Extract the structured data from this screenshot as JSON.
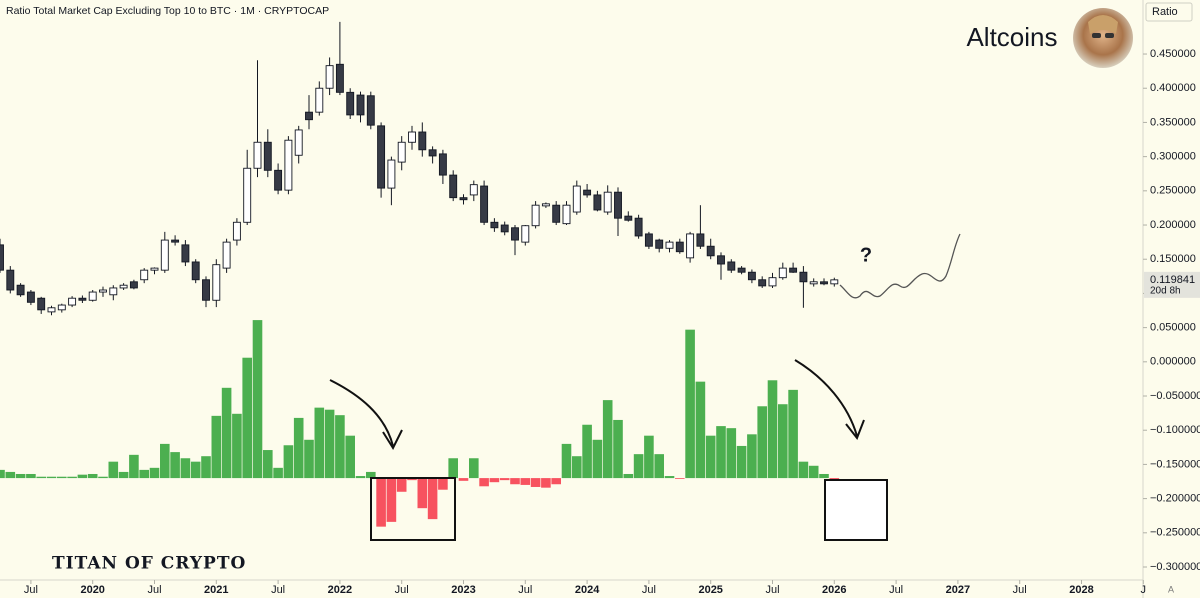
{
  "chart_data": {
    "type": "candlestick",
    "title": "Ratio Total Market Cap Excluding Top 10 to BTC · 1M · CRYPTOCAP",
    "scale_label": "Ratio",
    "annotations": {
      "main": "Altcoins",
      "question": "?",
      "watermark": "TITAN OF CRYPTO",
      "countdown": "20d 8h",
      "auto": "A"
    },
    "up_color": "#ffffff",
    "down_color": "#363a45",
    "x": [
      "2019-04",
      "2019-05",
      "2019-06",
      "2019-07",
      "2019-08",
      "2019-09",
      "2019-10",
      "2019-11",
      "2019-12",
      "2020-01",
      "2020-02",
      "2020-03",
      "2020-04",
      "2020-05",
      "2020-06",
      "2020-07",
      "2020-08",
      "2020-09",
      "2020-10",
      "2020-11",
      "2020-12",
      "2021-01",
      "2021-02",
      "2021-03",
      "2021-04",
      "2021-05",
      "2021-06",
      "2021-07",
      "2021-08",
      "2021-09",
      "2021-10",
      "2021-11",
      "2021-12",
      "2022-01",
      "2022-02",
      "2022-03",
      "2022-04",
      "2022-05",
      "2022-06",
      "2022-07",
      "2022-08",
      "2022-09",
      "2022-10",
      "2022-11",
      "2022-12",
      "2023-01",
      "2023-02",
      "2023-03",
      "2023-04",
      "2023-05",
      "2023-06",
      "2023-07",
      "2023-08",
      "2023-09",
      "2023-10",
      "2023-11",
      "2023-12",
      "2024-01",
      "2024-02",
      "2024-03",
      "2024-04",
      "2024-05",
      "2024-06",
      "2024-07",
      "2024-08",
      "2024-09",
      "2024-10",
      "2024-11",
      "2024-12",
      "2025-01",
      "2025-02",
      "2025-03",
      "2025-04",
      "2025-05",
      "2025-06",
      "2025-07",
      "2025-08",
      "2025-09",
      "2025-10",
      "2025-11",
      "2025-12",
      "2026-01"
    ],
    "candles": [
      [
        0.171,
        0.18,
        0.13,
        0.134
      ],
      [
        0.134,
        0.14,
        0.1,
        0.105
      ],
      [
        0.112,
        0.115,
        0.095,
        0.098
      ],
      [
        0.102,
        0.105,
        0.083,
        0.087
      ],
      [
        0.093,
        0.095,
        0.07,
        0.076
      ],
      [
        0.073,
        0.082,
        0.068,
        0.079
      ],
      [
        0.076,
        0.085,
        0.072,
        0.083
      ],
      [
        0.083,
        0.096,
        0.08,
        0.093
      ],
      [
        0.093,
        0.097,
        0.086,
        0.09
      ],
      [
        0.09,
        0.105,
        0.088,
        0.102
      ],
      [
        0.102,
        0.11,
        0.095,
        0.105
      ],
      [
        0.098,
        0.112,
        0.09,
        0.108
      ],
      [
        0.108,
        0.115,
        0.105,
        0.112
      ],
      [
        0.117,
        0.12,
        0.106,
        0.108
      ],
      [
        0.12,
        0.137,
        0.115,
        0.134
      ],
      [
        0.134,
        0.138,
        0.128,
        0.137
      ],
      [
        0.134,
        0.19,
        0.13,
        0.178
      ],
      [
        0.178,
        0.185,
        0.17,
        0.175
      ],
      [
        0.171,
        0.178,
        0.14,
        0.146
      ],
      [
        0.146,
        0.15,
        0.115,
        0.12
      ],
      [
        0.12,
        0.125,
        0.08,
        0.09
      ],
      [
        0.09,
        0.15,
        0.08,
        0.142
      ],
      [
        0.137,
        0.18,
        0.13,
        0.175
      ],
      [
        0.178,
        0.21,
        0.17,
        0.204
      ],
      [
        0.204,
        0.31,
        0.2,
        0.283
      ],
      [
        0.283,
        0.441,
        0.27,
        0.321
      ],
      [
        0.321,
        0.34,
        0.27,
        0.28
      ],
      [
        0.28,
        0.29,
        0.245,
        0.251
      ],
      [
        0.251,
        0.33,
        0.245,
        0.324
      ],
      [
        0.302,
        0.345,
        0.29,
        0.339
      ],
      [
        0.365,
        0.39,
        0.34,
        0.354
      ],
      [
        0.365,
        0.41,
        0.36,
        0.4
      ],
      [
        0.4,
        0.445,
        0.39,
        0.433
      ],
      [
        0.435,
        0.497,
        0.39,
        0.394
      ],
      [
        0.394,
        0.4,
        0.355,
        0.361
      ],
      [
        0.39,
        0.395,
        0.35,
        0.361
      ],
      [
        0.389,
        0.395,
        0.34,
        0.346
      ],
      [
        0.345,
        0.35,
        0.24,
        0.254
      ],
      [
        0.254,
        0.3,
        0.229,
        0.295
      ],
      [
        0.292,
        0.33,
        0.28,
        0.321
      ],
      [
        0.321,
        0.345,
        0.31,
        0.336
      ],
      [
        0.336,
        0.35,
        0.3,
        0.31
      ],
      [
        0.31,
        0.315,
        0.29,
        0.301
      ],
      [
        0.304,
        0.31,
        0.26,
        0.273
      ],
      [
        0.273,
        0.28,
        0.235,
        0.24
      ],
      [
        0.24,
        0.245,
        0.23,
        0.237
      ],
      [
        0.244,
        0.265,
        0.235,
        0.259
      ],
      [
        0.257,
        0.265,
        0.2,
        0.204
      ],
      [
        0.204,
        0.21,
        0.19,
        0.196
      ],
      [
        0.2,
        0.205,
        0.185,
        0.19
      ],
      [
        0.196,
        0.2,
        0.156,
        0.178
      ],
      [
        0.175,
        0.2,
        0.17,
        0.199
      ],
      [
        0.199,
        0.235,
        0.195,
        0.229
      ],
      [
        0.228,
        0.233,
        0.225,
        0.231
      ],
      [
        0.229,
        0.235,
        0.2,
        0.204
      ],
      [
        0.202,
        0.235,
        0.2,
        0.229
      ],
      [
        0.219,
        0.265,
        0.215,
        0.257
      ],
      [
        0.251,
        0.26,
        0.24,
        0.244
      ],
      [
        0.244,
        0.25,
        0.22,
        0.222
      ],
      [
        0.219,
        0.258,
        0.215,
        0.248
      ],
      [
        0.248,
        0.255,
        0.184,
        0.21
      ],
      [
        0.213,
        0.22,
        0.205,
        0.207
      ],
      [
        0.21,
        0.215,
        0.18,
        0.184
      ],
      [
        0.187,
        0.19,
        0.165,
        0.169
      ],
      [
        0.178,
        0.18,
        0.16,
        0.166
      ],
      [
        0.166,
        0.178,
        0.16,
        0.175
      ],
      [
        0.175,
        0.18,
        0.158,
        0.161
      ],
      [
        0.152,
        0.19,
        0.145,
        0.187
      ],
      [
        0.187,
        0.229,
        0.165,
        0.169
      ],
      [
        0.169,
        0.18,
        0.15,
        0.155
      ],
      [
        0.155,
        0.16,
        0.12,
        0.143
      ],
      [
        0.146,
        0.15,
        0.13,
        0.134
      ],
      [
        0.137,
        0.14,
        0.128,
        0.131
      ],
      [
        0.131,
        0.135,
        0.115,
        0.12
      ],
      [
        0.12,
        0.125,
        0.108,
        0.111
      ],
      [
        0.111,
        0.13,
        0.108,
        0.123
      ],
      [
        0.123,
        0.145,
        0.12,
        0.137
      ],
      [
        0.137,
        0.145,
        0.13,
        0.131
      ],
      [
        0.131,
        0.14,
        0.079,
        0.117
      ],
      [
        0.114,
        0.122,
        0.11,
        0.117
      ],
      [
        0.117,
        0.122,
        0.112,
        0.114
      ],
      [
        0.114,
        0.123,
        0.11,
        0.119841
      ]
    ],
    "histogram": {
      "baseline": -0.17,
      "up_color": "#4caf50",
      "down_color": "#f7525f",
      "values": [
        -0.158,
        -0.161,
        -0.164,
        -0.164,
        -0.168,
        -0.168,
        -0.168,
        -0.168,
        -0.165,
        -0.164,
        -0.168,
        -0.146,
        -0.161,
        -0.136,
        -0.158,
        -0.155,
        -0.12,
        -0.132,
        -0.141,
        -0.146,
        -0.138,
        -0.079,
        -0.038,
        -0.076,
        0.006,
        0.061,
        -0.129,
        -0.155,
        -0.122,
        -0.082,
        -0.114,
        -0.067,
        -0.07,
        -0.078,
        -0.108,
        -0.167,
        -0.161,
        -0.241,
        -0.234,
        -0.19,
        -0.173,
        -0.214,
        -0.23,
        -0.187,
        -0.141,
        -0.174,
        -0.141,
        -0.182,
        -0.176,
        -0.173,
        -0.179,
        -0.18,
        -0.183,
        -0.184,
        -0.179,
        -0.12,
        -0.138,
        -0.092,
        -0.114,
        -0.056,
        -0.085,
        -0.164,
        -0.135,
        -0.108,
        -0.135,
        -0.167,
        -0.171,
        0.047,
        -0.029,
        -0.108,
        -0.094,
        -0.097,
        -0.123,
        -0.106,
        -0.065,
        -0.027,
        -0.062,
        -0.041,
        -0.146,
        -0.152,
        -0.164,
        -0.184
      ]
    },
    "ylim": [
      -0.319,
      0.529
    ],
    "yticks": [
      {
        "value": 0.45,
        "label": "0.450000"
      },
      {
        "value": 0.4,
        "label": "0.400000"
      },
      {
        "value": 0.35,
        "label": "0.350000"
      },
      {
        "value": 0.3,
        "label": "0.300000"
      },
      {
        "value": 0.25,
        "label": "0.250000"
      },
      {
        "value": 0.2,
        "label": "0.200000"
      },
      {
        "value": 0.15,
        "label": "0.150000"
      },
      {
        "value": 0.1,
        "label": "0.100000"
      },
      {
        "value": 0.05,
        "label": "0.050000"
      },
      {
        "value": 0,
        "label": "0.000000"
      },
      {
        "value": -0.05,
        "label": "−0.050000"
      },
      {
        "value": -0.1,
        "label": "−0.100000"
      },
      {
        "value": -0.15,
        "label": "−0.150000"
      },
      {
        "value": -0.2,
        "label": "−0.200000"
      },
      {
        "value": -0.25,
        "label": "−0.250000"
      },
      {
        "value": -0.3,
        "label": "−0.300000"
      }
    ],
    "xticks": [
      {
        "value": "2019-07",
        "label": "Jul"
      },
      {
        "value": "2020-01",
        "label": "2020"
      },
      {
        "value": "2020-07",
        "label": "Jul"
      },
      {
        "value": "2021-01",
        "label": "2021"
      },
      {
        "value": "2021-07",
        "label": "Jul"
      },
      {
        "value": "2022-01",
        "label": "2022"
      },
      {
        "value": "2022-07",
        "label": "Jul"
      },
      {
        "value": "2023-01",
        "label": "2023"
      },
      {
        "value": "2023-07",
        "label": "Jul"
      },
      {
        "value": "2024-01",
        "label": "2024"
      },
      {
        "value": "2024-07",
        "label": "Jul"
      },
      {
        "value": "2025-01",
        "label": "2025"
      },
      {
        "value": "2025-07",
        "label": "Jul"
      },
      {
        "value": "2026-01",
        "label": "2026"
      },
      {
        "value": "2026-07",
        "label": "Jul"
      },
      {
        "value": "2027-01",
        "label": "2027"
      },
      {
        "value": "2027-07",
        "label": "Jul"
      },
      {
        "value": "2028-01",
        "label": "2028"
      },
      {
        "value": "2028-07",
        "label": "J"
      }
    ]
  }
}
